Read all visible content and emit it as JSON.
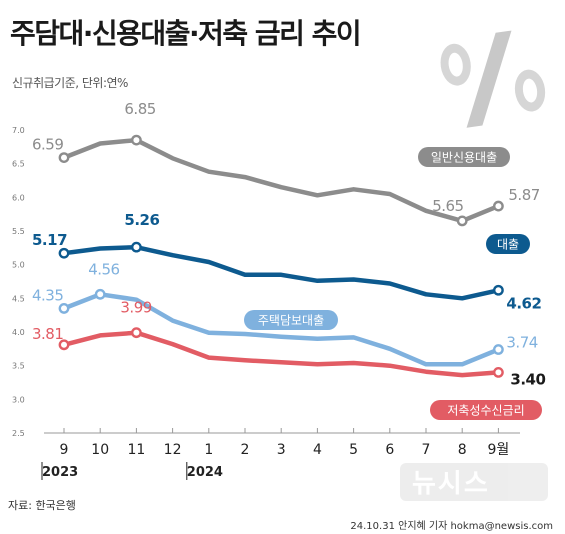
{
  "header": {
    "title": "주담대·신용대출·저축 금리 추이",
    "subtitle": "신규취급기준, 단위:연%"
  },
  "footer": {
    "source": "자료: 한국은행",
    "credit": "24.10.31 안지혜 기자 hokma@newsis.com"
  },
  "watermark": "뉴시스",
  "chart_data": {
    "type": "line",
    "title": "주담대·신용대출·저축 금리 추이",
    "subtitle": "신규취급기준, 단위:연%",
    "categories": [
      "9",
      "10",
      "11",
      "12",
      "1",
      "2",
      "3",
      "4",
      "5",
      "6",
      "7",
      "8",
      "9월"
    ],
    "years": [
      {
        "label": "2023",
        "index": 0
      },
      {
        "label": "2024",
        "index": 4
      }
    ],
    "ylim": [
      2.5,
      7.0
    ],
    "yticks": [
      "7.0",
      "6.5",
      "6.0",
      "5.5",
      "5.0",
      "4.5",
      "4.0",
      "3.5",
      "3.0",
      "2.5"
    ],
    "grid": false,
    "series": [
      {
        "name": "일반신용대출",
        "color": "#8c8c8c",
        "values": [
          6.59,
          6.8,
          6.85,
          6.58,
          6.38,
          6.3,
          6.15,
          6.03,
          6.12,
          6.05,
          5.8,
          5.65,
          5.87
        ],
        "point_labels": [
          {
            "index": 0,
            "text": "6.59"
          },
          {
            "index": 2,
            "text": "6.85"
          },
          {
            "index": 11,
            "text": "5.65"
          },
          {
            "index": 12,
            "text": "5.87"
          }
        ]
      },
      {
        "name": "대출",
        "color": "#0d5a8f",
        "values": [
          5.17,
          5.24,
          5.26,
          5.14,
          5.04,
          4.85,
          4.85,
          4.76,
          4.78,
          4.72,
          4.56,
          4.5,
          4.62
        ],
        "point_labels": [
          {
            "index": 0,
            "text": "5.17"
          },
          {
            "index": 2,
            "text": "5.26"
          },
          {
            "index": 12,
            "text": "4.62"
          }
        ]
      },
      {
        "name": "주택담보대출",
        "color": "#7fb1de",
        "values": [
          4.35,
          4.56,
          4.48,
          4.17,
          3.99,
          3.97,
          3.93,
          3.9,
          3.92,
          3.75,
          3.52,
          3.52,
          3.74
        ],
        "point_labels": [
          {
            "index": 0,
            "text": "4.35"
          },
          {
            "index": 1,
            "text": "4.56"
          },
          {
            "index": 12,
            "text": "3.74"
          }
        ]
      },
      {
        "name": "저축성수신금리",
        "color": "#e25c64",
        "values": [
          3.81,
          3.95,
          3.99,
          3.82,
          3.62,
          3.58,
          3.55,
          3.52,
          3.54,
          3.5,
          3.41,
          3.36,
          3.4
        ],
        "point_labels": [
          {
            "index": 0,
            "text": "3.81"
          },
          {
            "index": 2,
            "text": "3.99"
          },
          {
            "index": 12,
            "text": "3.40"
          }
        ]
      }
    ]
  }
}
